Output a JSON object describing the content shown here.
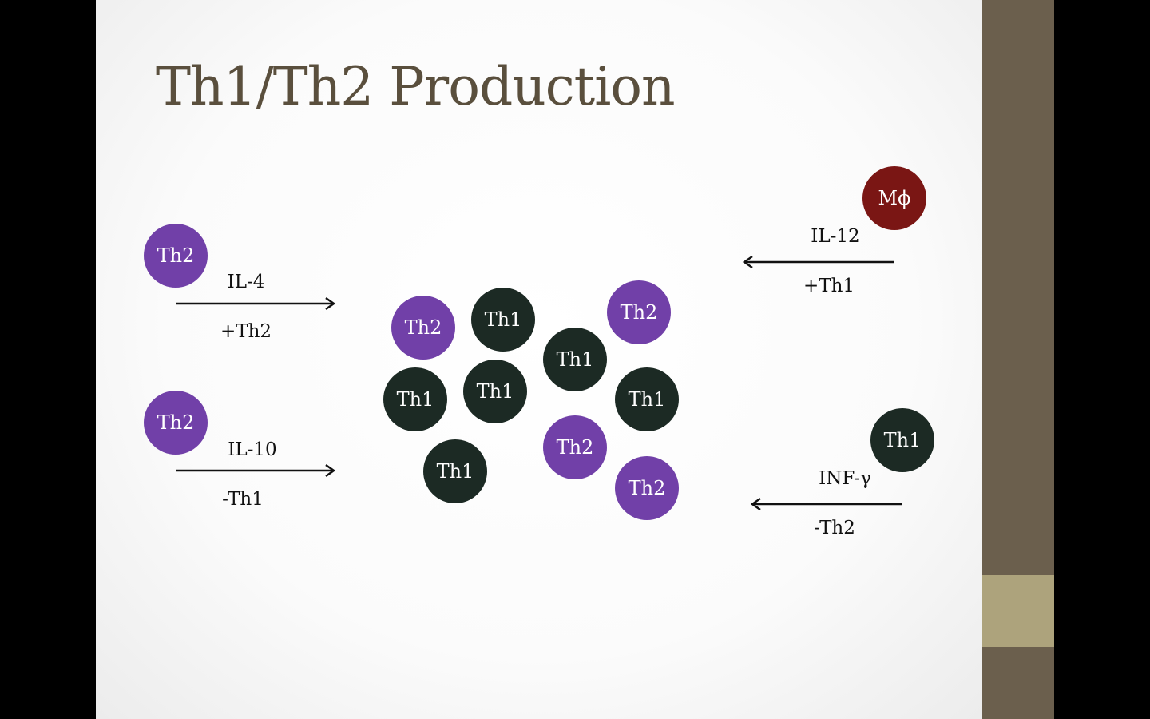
{
  "title": "Th1/Th2 Production",
  "colors": {
    "th1": "#1c2a24",
    "th2": "#7140a8",
    "macrophage": "#7a1614",
    "title": "#5a4f3d",
    "sidebar": "#6b5f4d",
    "sidebar_accent": "#ada37c"
  },
  "left_inputs": [
    {
      "cell": "Th2",
      "cytokine": "IL-4",
      "effect": "+Th2"
    },
    {
      "cell": "Th2",
      "cytokine": "IL-10",
      "effect": "-Th1"
    }
  ],
  "right_inputs": [
    {
      "cell": "Mϕ",
      "cytokine": "IL-12",
      "effect": "+Th1"
    },
    {
      "cell": "Th1",
      "cytokine": "INF-γ",
      "effect": "-Th2"
    }
  ],
  "population": [
    {
      "type": "th2",
      "label": "Th2"
    },
    {
      "type": "th1",
      "label": "Th1"
    },
    {
      "type": "th2",
      "label": "Th2"
    },
    {
      "type": "th1",
      "label": "Th1"
    },
    {
      "type": "th1",
      "label": "Th1"
    },
    {
      "type": "th1",
      "label": "Th1"
    },
    {
      "type": "th1",
      "label": "Th1"
    },
    {
      "type": "th1",
      "label": "Th1"
    },
    {
      "type": "th2",
      "label": "Th2"
    },
    {
      "type": "th2",
      "label": "Th2"
    }
  ]
}
